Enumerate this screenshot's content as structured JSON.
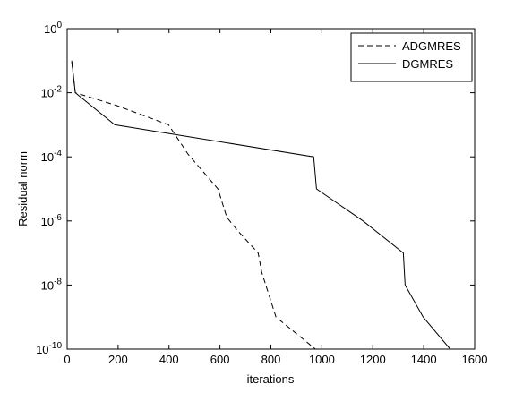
{
  "chart_data": {
    "type": "line",
    "xlabel": "iterations",
    "ylabel": "Residual norm",
    "xlim": [
      0,
      1600
    ],
    "xticks": [
      0,
      200,
      400,
      600,
      800,
      1000,
      1200,
      1400,
      1600
    ],
    "ylim": [
      1e-10,
      1
    ],
    "yscale": "log",
    "yticks": [
      {
        "value": 1e-10,
        "label": "10^-10"
      },
      {
        "value": 1e-08,
        "label": "10^-8"
      },
      {
        "value": 1e-06,
        "label": "10^-6"
      },
      {
        "value": 0.0001,
        "label": "10^-4"
      },
      {
        "value": 0.01,
        "label": "10^-2"
      },
      {
        "value": 1,
        "label": "10^0"
      }
    ],
    "legend": "upper right",
    "series": [
      {
        "name": "ADGMRES",
        "color": "#000000",
        "style": "dashed",
        "x": [
          18,
          32,
          194,
          398,
          475,
          592,
          627,
          669,
          750,
          764,
          820,
          975
        ],
        "values": [
          0.09,
          0.01,
          0.004,
          0.001,
          0.00012,
          1e-05,
          1.3e-06,
          5e-07,
          1e-07,
          2.5e-08,
          1e-09,
          1e-10
        ]
      },
      {
        "name": "DGMRES",
        "color": "#000000",
        "style": "solid",
        "x": [
          18,
          32,
          187,
          968,
          979,
          1162,
          1320,
          1327,
          1398,
          1504
        ],
        "values": [
          0.1,
          0.01,
          0.001,
          0.0001,
          1e-05,
          1e-06,
          1e-07,
          1e-08,
          1e-09,
          1e-10
        ]
      }
    ]
  }
}
